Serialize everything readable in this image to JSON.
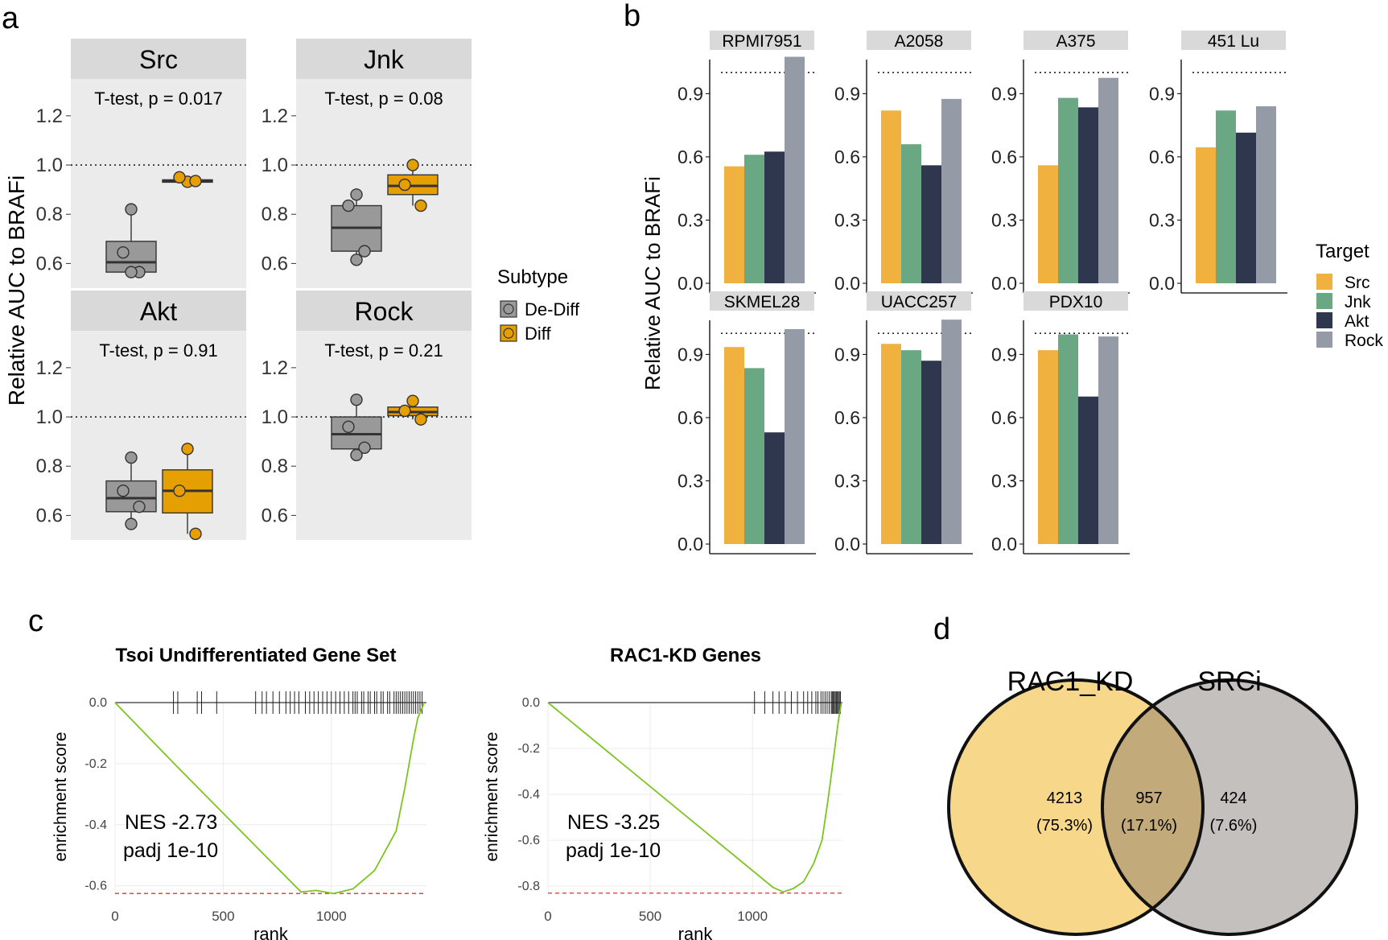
{
  "colors": {
    "panel_bg": "#ebebeb",
    "strip_bg": "#d9d9d9",
    "dediff": "#999999",
    "diff": "#e69f00",
    "src": "#f0b13f",
    "jnk": "#6aa883",
    "akt": "#2e374e",
    "rock": "#949aa6",
    "es_line": "#7cc520",
    "red_line": "#e03030",
    "venn_a": "#f7d88b",
    "venn_b": "#c4c0bd",
    "venn_ab": "#c2aa7a"
  },
  "panel_labels": {
    "a": "a",
    "b": "b",
    "c": "c",
    "d": "d"
  },
  "chart_data": [
    {
      "type": "box",
      "panel": "a",
      "ylabel": "Relative AUC to BRAFi",
      "ylim": [
        0.5,
        1.35
      ],
      "yticks": [
        "0.6",
        "0.8",
        "1.0",
        "1.2"
      ],
      "reference_line": 1.0,
      "legend": {
        "title": "Subtype",
        "entries": [
          "De-Diff",
          "Diff"
        ]
      },
      "facets": [
        {
          "name": "Src",
          "test": "T-test, p = 0.017",
          "groups": [
            {
              "subtype": "De-Diff",
              "q1": 0.565,
              "median": 0.605,
              "q3": 0.69,
              "lo": 0.565,
              "hi": 0.82,
              "points": [
                0.82,
                0.645,
                0.565,
                0.565
              ]
            },
            {
              "subtype": "Diff",
              "q1": 0.932,
              "median": 0.935,
              "q3": 0.94,
              "lo": 0.932,
              "hi": 0.95,
              "points": [
                0.932,
                0.95,
                0.935
              ]
            }
          ]
        },
        {
          "name": "Jnk",
          "test": "T-test, p = 0.08",
          "groups": [
            {
              "subtype": "De-Diff",
              "q1": 0.65,
              "median": 0.745,
              "q3": 0.835,
              "lo": 0.615,
              "hi": 0.88,
              "points": [
                0.88,
                0.835,
                0.65,
                0.615
              ]
            },
            {
              "subtype": "Diff",
              "q1": 0.88,
              "median": 0.915,
              "q3": 0.96,
              "lo": 0.835,
              "hi": 1.0,
              "points": [
                1.0,
                0.92,
                0.835
              ]
            }
          ]
        },
        {
          "name": "Akt",
          "test": "T-test, p = 0.91",
          "groups": [
            {
              "subtype": "De-Diff",
              "q1": 0.615,
              "median": 0.67,
              "q3": 0.74,
              "lo": 0.565,
              "hi": 0.835,
              "points": [
                0.835,
                0.7,
                0.635,
                0.565
              ]
            },
            {
              "subtype": "Diff",
              "q1": 0.61,
              "median": 0.7,
              "q3": 0.785,
              "lo": 0.525,
              "hi": 0.87,
              "points": [
                0.87,
                0.7,
                0.525
              ]
            }
          ]
        },
        {
          "name": "Rock",
          "test": "T-test, p = 0.21",
          "groups": [
            {
              "subtype": "De-Diff",
              "q1": 0.87,
              "median": 0.93,
              "q3": 1.0,
              "lo": 0.845,
              "hi": 1.07,
              "points": [
                1.07,
                0.96,
                0.875,
                0.845
              ]
            },
            {
              "subtype": "Diff",
              "q1": 1.005,
              "median": 1.02,
              "q3": 1.04,
              "lo": 0.99,
              "hi": 1.065,
              "points": [
                1.065,
                1.025,
                0.99
              ]
            }
          ]
        }
      ]
    },
    {
      "type": "bar",
      "panel": "b",
      "ylabel": "Relative AUC to BRAFi",
      "ylim": [
        0,
        1.1
      ],
      "yticks": [
        "0.0",
        "0.3",
        "0.6",
        "0.9"
      ],
      "reference_line": 1.0,
      "legend": {
        "title": "Target",
        "entries": [
          "Src",
          "Jnk",
          "Akt",
          "Rock"
        ]
      },
      "facets": [
        {
          "name": "RPMI7951",
          "values": [
            0.555,
            0.61,
            0.625,
            1.075
          ]
        },
        {
          "name": "A2058",
          "values": [
            0.82,
            0.66,
            0.56,
            0.875
          ]
        },
        {
          "name": "A375",
          "values": [
            0.56,
            0.88,
            0.835,
            0.975
          ]
        },
        {
          "name": "451  Lu",
          "values": [
            0.645,
            0.82,
            0.715,
            0.84
          ]
        },
        {
          "name": "SKMEL28",
          "values": [
            0.935,
            0.835,
            0.53,
            1.02
          ]
        },
        {
          "name": "UACC257",
          "values": [
            0.95,
            0.92,
            0.87,
            1.065
          ]
        },
        {
          "name": "PDX10",
          "values": [
            0.92,
            0.995,
            0.7,
            0.985
          ]
        }
      ]
    },
    {
      "type": "line",
      "panel": "c",
      "plots": [
        {
          "title": "Tsoi Undifferentiated Gene Set",
          "xlabel": "rank",
          "ylabel": "enrichment score",
          "xlim": [
            0,
            1440
          ],
          "ylim": [
            -0.635,
            0.0
          ],
          "xticks": [
            "0",
            "500",
            "1000"
          ],
          "yticks": [
            "0.0",
            "-0.2",
            "-0.4",
            "-0.6"
          ],
          "nes": "NES -2.73",
          "padj": "padj 1e-10",
          "min_es": -0.625,
          "x": [
            0,
            280,
            860,
            930,
            1010,
            1100,
            1200,
            1300,
            1340,
            1380,
            1400,
            1430
          ],
          "y": [
            0,
            -0.205,
            -0.62,
            -0.615,
            -0.625,
            -0.61,
            -0.55,
            -0.42,
            -0.28,
            -0.12,
            -0.05,
            0
          ],
          "hits": [
            270,
            290,
            380,
            400,
            470,
            650,
            680,
            700,
            730,
            760,
            790,
            810,
            830,
            850,
            880,
            900,
            920,
            940,
            960,
            980,
            1000,
            1020,
            1040,
            1060,
            1080,
            1100,
            1110,
            1120,
            1140,
            1150,
            1170,
            1180,
            1200,
            1210,
            1230,
            1240,
            1260,
            1270,
            1290,
            1300,
            1310,
            1320,
            1330,
            1340,
            1350,
            1360,
            1370,
            1380,
            1390,
            1400,
            1410,
            1420
          ]
        },
        {
          "title": "RAC1-KD Genes",
          "xlabel": "rank",
          "ylabel": "enrichment score",
          "xlim": [
            0,
            1440
          ],
          "ylim": [
            -0.845,
            0.0
          ],
          "xticks": [
            "0",
            "500",
            "1000"
          ],
          "yticks": [
            "0.0",
            "-0.2",
            "-0.4",
            "-0.6",
            "-0.8"
          ],
          "nes": "NES -3.25",
          "padj": "padj 1e-10",
          "min_es": -0.83,
          "x": [
            0,
            1100,
            1150,
            1200,
            1250,
            1300,
            1340,
            1370,
            1395,
            1420,
            1435
          ],
          "y": [
            0,
            -0.805,
            -0.825,
            -0.81,
            -0.78,
            -0.7,
            -0.6,
            -0.42,
            -0.25,
            -0.08,
            0
          ],
          "hits": [
            1010,
            1060,
            1100,
            1130,
            1160,
            1190,
            1220,
            1250,
            1270,
            1290,
            1310,
            1320,
            1335,
            1345,
            1355,
            1365,
            1375,
            1385,
            1390,
            1395,
            1400,
            1405,
            1410,
            1415,
            1420,
            1425,
            1430
          ]
        }
      ]
    },
    {
      "type": "venn",
      "panel": "d",
      "sets": [
        {
          "name": "RAC1_KD",
          "only": "4213",
          "only_pct": "(75.3%)"
        },
        {
          "name": "SRCi",
          "only": "424",
          "only_pct": "(7.6%)"
        }
      ],
      "intersection": {
        "value": "957",
        "pct": "(17.1%)"
      }
    }
  ]
}
